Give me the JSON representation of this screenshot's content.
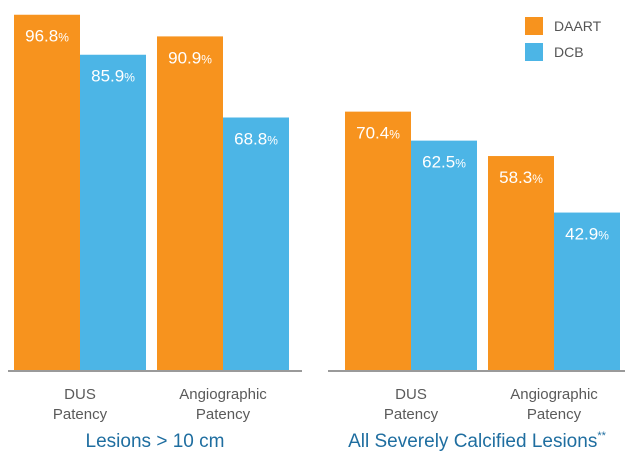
{
  "chart_data": {
    "type": "bar",
    "ylim": [
      0,
      100
    ],
    "grid": false,
    "legend_position": "top-right",
    "series": [
      {
        "name": "DAART",
        "color": "#f7931e"
      },
      {
        "name": "DCB",
        "color": "#4cb5e6"
      }
    ],
    "groups": [
      {
        "title": "Lesions > 10 cm",
        "title_suffix": "",
        "categories": [
          {
            "label_lines": [
              "DUS",
              "Patency"
            ],
            "values": [
              96.8,
              85.9
            ],
            "labels": [
              "96.8",
              "85.9"
            ]
          },
          {
            "label_lines": [
              "Angiographic",
              "Patency"
            ],
            "values": [
              90.9,
              68.8
            ],
            "labels": [
              "90.9",
              "68.8"
            ]
          }
        ]
      },
      {
        "title": "All Severely Calcified Lesions",
        "title_suffix": "**",
        "categories": [
          {
            "label_lines": [
              "DUS",
              "Patency"
            ],
            "values": [
              70.4,
              62.5
            ],
            "labels": [
              "70.4",
              "62.5"
            ]
          },
          {
            "label_lines": [
              "Angiographic",
              "Patency"
            ],
            "values": [
              58.3,
              42.9
            ],
            "labels": [
              "58.3",
              "42.9"
            ]
          }
        ]
      }
    ],
    "value_unit": "%"
  }
}
